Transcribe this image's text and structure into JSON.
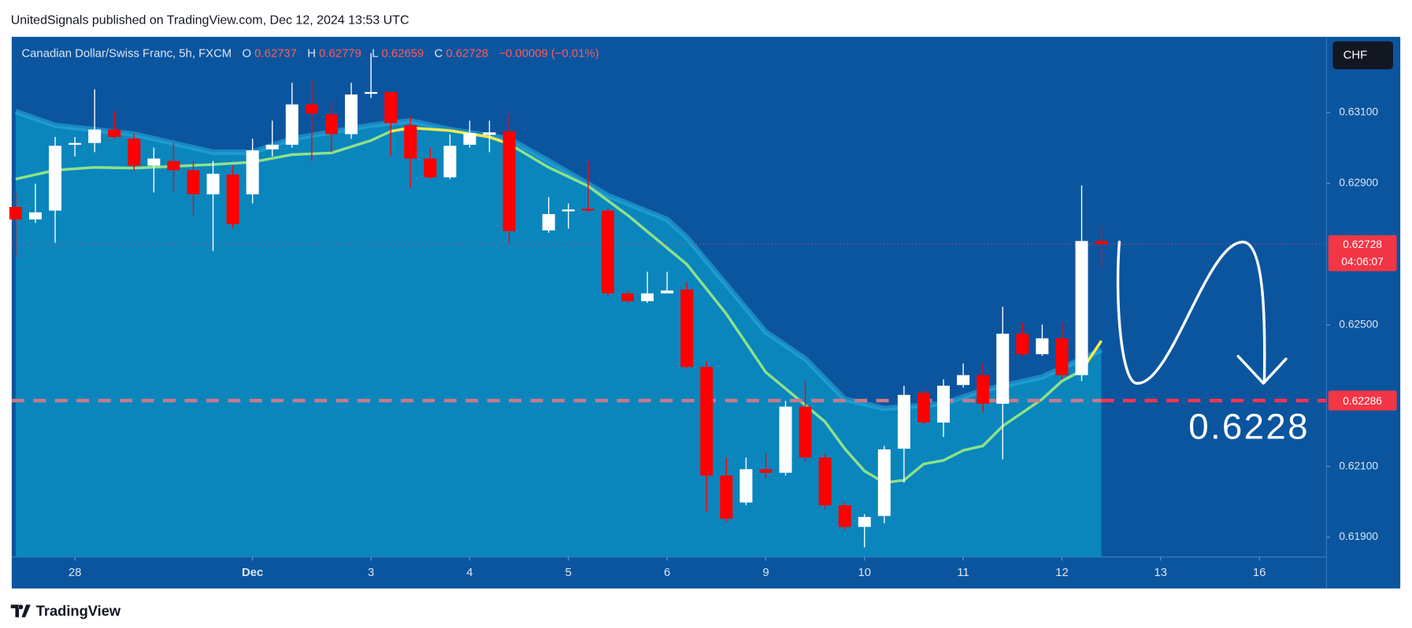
{
  "header": {
    "publisher": "UnitedSignals published on TradingView.com, Dec 12, 2024 13:53 UTC"
  },
  "footer": {
    "brand": "TradingView"
  },
  "chart_data": {
    "type": "candlestick",
    "title": "Canadian Dollar/Swiss Franc, 5h, FXCM",
    "ohlc_labels": {
      "open": "O",
      "high": "H",
      "low": "L",
      "close": "C"
    },
    "change_label": "−0.00009 (−0.01%)",
    "currency": "CHF",
    "countdown": "04:06:07",
    "annotation": "0.6228",
    "level": 0.62286,
    "up_color": "#ffffff",
    "down_color": "#ff0000",
    "grid": false,
    "xlim": [
      -0.2,
      66.4
    ],
    "ylim": [
      0.61844,
      0.63314
    ],
    "xticks": [
      {
        "value": 3,
        "label": "28"
      },
      {
        "value": 12,
        "label": "Dec"
      },
      {
        "value": 18,
        "label": "3"
      },
      {
        "value": 23,
        "label": "4"
      },
      {
        "value": 28,
        "label": "5"
      },
      {
        "value": 33,
        "label": "6"
      },
      {
        "value": 38,
        "label": "9"
      },
      {
        "value": 43,
        "label": "10"
      },
      {
        "value": 48,
        "label": "11"
      },
      {
        "value": 53,
        "label": "12"
      },
      {
        "value": 58,
        "label": "13"
      },
      {
        "value": 63,
        "label": "16"
      }
    ],
    "yticks": [
      {
        "value": 0.631,
        "label": "0.63100"
      },
      {
        "value": 0.629,
        "label": "0.62900"
      },
      {
        "value": 0.625,
        "label": "0.62500"
      },
      {
        "value": 0.621,
        "label": "0.62100"
      },
      {
        "value": 0.619,
        "label": "0.61900"
      }
    ],
    "candles": {
      "x": [
        0,
        1,
        2,
        3,
        4,
        5,
        6,
        7,
        8,
        9,
        10,
        11,
        12,
        13,
        14,
        15,
        16,
        17,
        18,
        19,
        20,
        21,
        22,
        23,
        24,
        25,
        27,
        28,
        29,
        30,
        31,
        32,
        33,
        34,
        35,
        36,
        37,
        38,
        39,
        40,
        41,
        42,
        43,
        44,
        45,
        46,
        47,
        48,
        49,
        50,
        51,
        52,
        53,
        54,
        55
      ],
      "open": [
        0.62833,
        0.62798,
        0.62823,
        0.63009,
        0.63014,
        0.63052,
        0.63026,
        0.6295,
        0.62963,
        0.62937,
        0.62869,
        0.62925,
        0.62869,
        0.62996,
        0.63009,
        0.63123,
        0.63095,
        0.63039,
        0.63153,
        0.63158,
        0.63064,
        0.6297,
        0.62917,
        0.63009,
        0.63037,
        0.63047,
        0.62767,
        0.62821,
        0.62828,
        0.62823,
        0.62589,
        0.62567,
        0.62589,
        0.626,
        0.62381,
        0.62074,
        0.61998,
        0.62092,
        0.62082,
        0.62269,
        0.62125,
        0.6199,
        0.61929,
        0.6196,
        0.6215,
        0.62308,
        0.62224,
        0.6233,
        0.62358,
        0.62277,
        0.62475,
        0.62417,
        0.62462,
        0.62358,
        0.62737
      ],
      "high": [
        0.62874,
        0.62899,
        0.63031,
        0.63031,
        0.63166,
        0.63103,
        0.63039,
        0.63001,
        0.63014,
        0.62963,
        0.62963,
        0.6295,
        0.63026,
        0.63077,
        0.63184,
        0.63191,
        0.63128,
        0.63184,
        0.63268,
        0.63158,
        0.6309,
        0.63001,
        0.63039,
        0.63077,
        0.63077,
        0.63097,
        0.62861,
        0.62843,
        0.62963,
        0.62828,
        0.62595,
        0.6265,
        0.6265,
        0.6262,
        0.62396,
        0.62125,
        0.62125,
        0.62137,
        0.62285,
        0.62341,
        0.62137,
        0.61998,
        0.61965,
        0.62158,
        0.62328,
        0.6232,
        0.62346,
        0.62391,
        0.62391,
        0.62551,
        0.62506,
        0.62501,
        0.62506,
        0.62894,
        0.62779
      ],
      "low": [
        0.62691,
        0.62788,
        0.62732,
        0.62976,
        0.62988,
        0.63026,
        0.62937,
        0.62874,
        0.62874,
        0.6281,
        0.62709,
        0.62772,
        0.62843,
        0.62976,
        0.63001,
        0.62963,
        0.62988,
        0.63026,
        0.63141,
        0.62976,
        0.62887,
        0.62912,
        0.62912,
        0.63001,
        0.62988,
        0.62727,
        0.6276,
        0.62772,
        0.62818,
        0.62582,
        0.62562,
        0.62562,
        0.62589,
        0.62376,
        0.61972,
        0.61944,
        0.6199,
        0.62066,
        0.62074,
        0.62112,
        0.6198,
        0.61921,
        0.61871,
        0.61939,
        0.62054,
        0.62219,
        0.62183,
        0.62323,
        0.62252,
        0.6212,
        0.62412,
        0.62412,
        0.62346,
        0.62341,
        0.62659
      ],
      "close": [
        0.62798,
        0.62818,
        0.63006,
        0.63014,
        0.63052,
        0.63031,
        0.6295,
        0.6297,
        0.62937,
        0.62869,
        0.62927,
        0.62785,
        0.62993,
        0.63009,
        0.63123,
        0.63097,
        0.63039,
        0.63151,
        0.63158,
        0.6307,
        0.6297,
        0.62917,
        0.63006,
        0.63042,
        0.63044,
        0.62765,
        0.62813,
        0.62826,
        0.62823,
        0.62589,
        0.62567,
        0.62589,
        0.62597,
        0.62381,
        0.62074,
        0.61952,
        0.62092,
        0.62082,
        0.62269,
        0.62125,
        0.6199,
        0.61929,
        0.61957,
        0.62148,
        0.62302,
        0.62224,
        0.62328,
        0.62358,
        0.62277,
        0.62475,
        0.62417,
        0.62462,
        0.62358,
        0.62737,
        0.62728
      ]
    },
    "band": {
      "color": "#0a86bd",
      "edge_color": "#2cb0e0",
      "x": [
        0,
        2,
        6,
        10,
        12,
        14,
        18,
        20,
        22,
        25,
        27,
        30,
        33,
        34,
        38,
        40,
        42,
        44,
        47,
        49,
        52,
        55
      ],
      "values": [
        0.63103,
        0.63064,
        0.63039,
        0.62988,
        0.62988,
        0.63026,
        0.63064,
        0.63077,
        0.63052,
        0.63026,
        0.62963,
        0.62866,
        0.62798,
        0.62747,
        0.6248,
        0.62404,
        0.6229,
        0.62264,
        0.62277,
        0.62315,
        0.62353,
        0.62429
      ]
    },
    "overlays": [
      {
        "color": "#8fe08a",
        "x": [
          0,
          2,
          4,
          6,
          8,
          10,
          12,
          14,
          16,
          18,
          19,
          20,
          22,
          24,
          25,
          27,
          29,
          31,
          34,
          36,
          38,
          39,
          41,
          42,
          43,
          44,
          45,
          46,
          47,
          48,
          49,
          50,
          52,
          53,
          54,
          55
        ],
        "values": [
          0.62912,
          0.62937,
          0.62945,
          0.62943,
          0.62948,
          0.62953,
          0.6296,
          0.62981,
          0.62986,
          0.63021,
          0.63047,
          0.63057,
          0.63049,
          0.63031,
          0.63011,
          0.62945,
          0.62892,
          0.6281,
          0.62671,
          0.62531,
          0.62366,
          0.6232,
          0.62226,
          0.6215,
          0.62087,
          0.62054,
          0.62061,
          0.62107,
          0.62117,
          0.62145,
          0.62158,
          0.62214,
          0.6229,
          0.62341,
          0.62371,
          0.62455
        ]
      },
      {
        "color": "#f5e94a",
        "x": [
          19,
          20,
          22,
          24,
          25,
          53,
          54,
          55
        ],
        "values": [
          0.63047,
          0.63057,
          0.63049,
          0.63031,
          0.63011,
          null,
          0.62371,
          0.62455
        ]
      }
    ]
  }
}
